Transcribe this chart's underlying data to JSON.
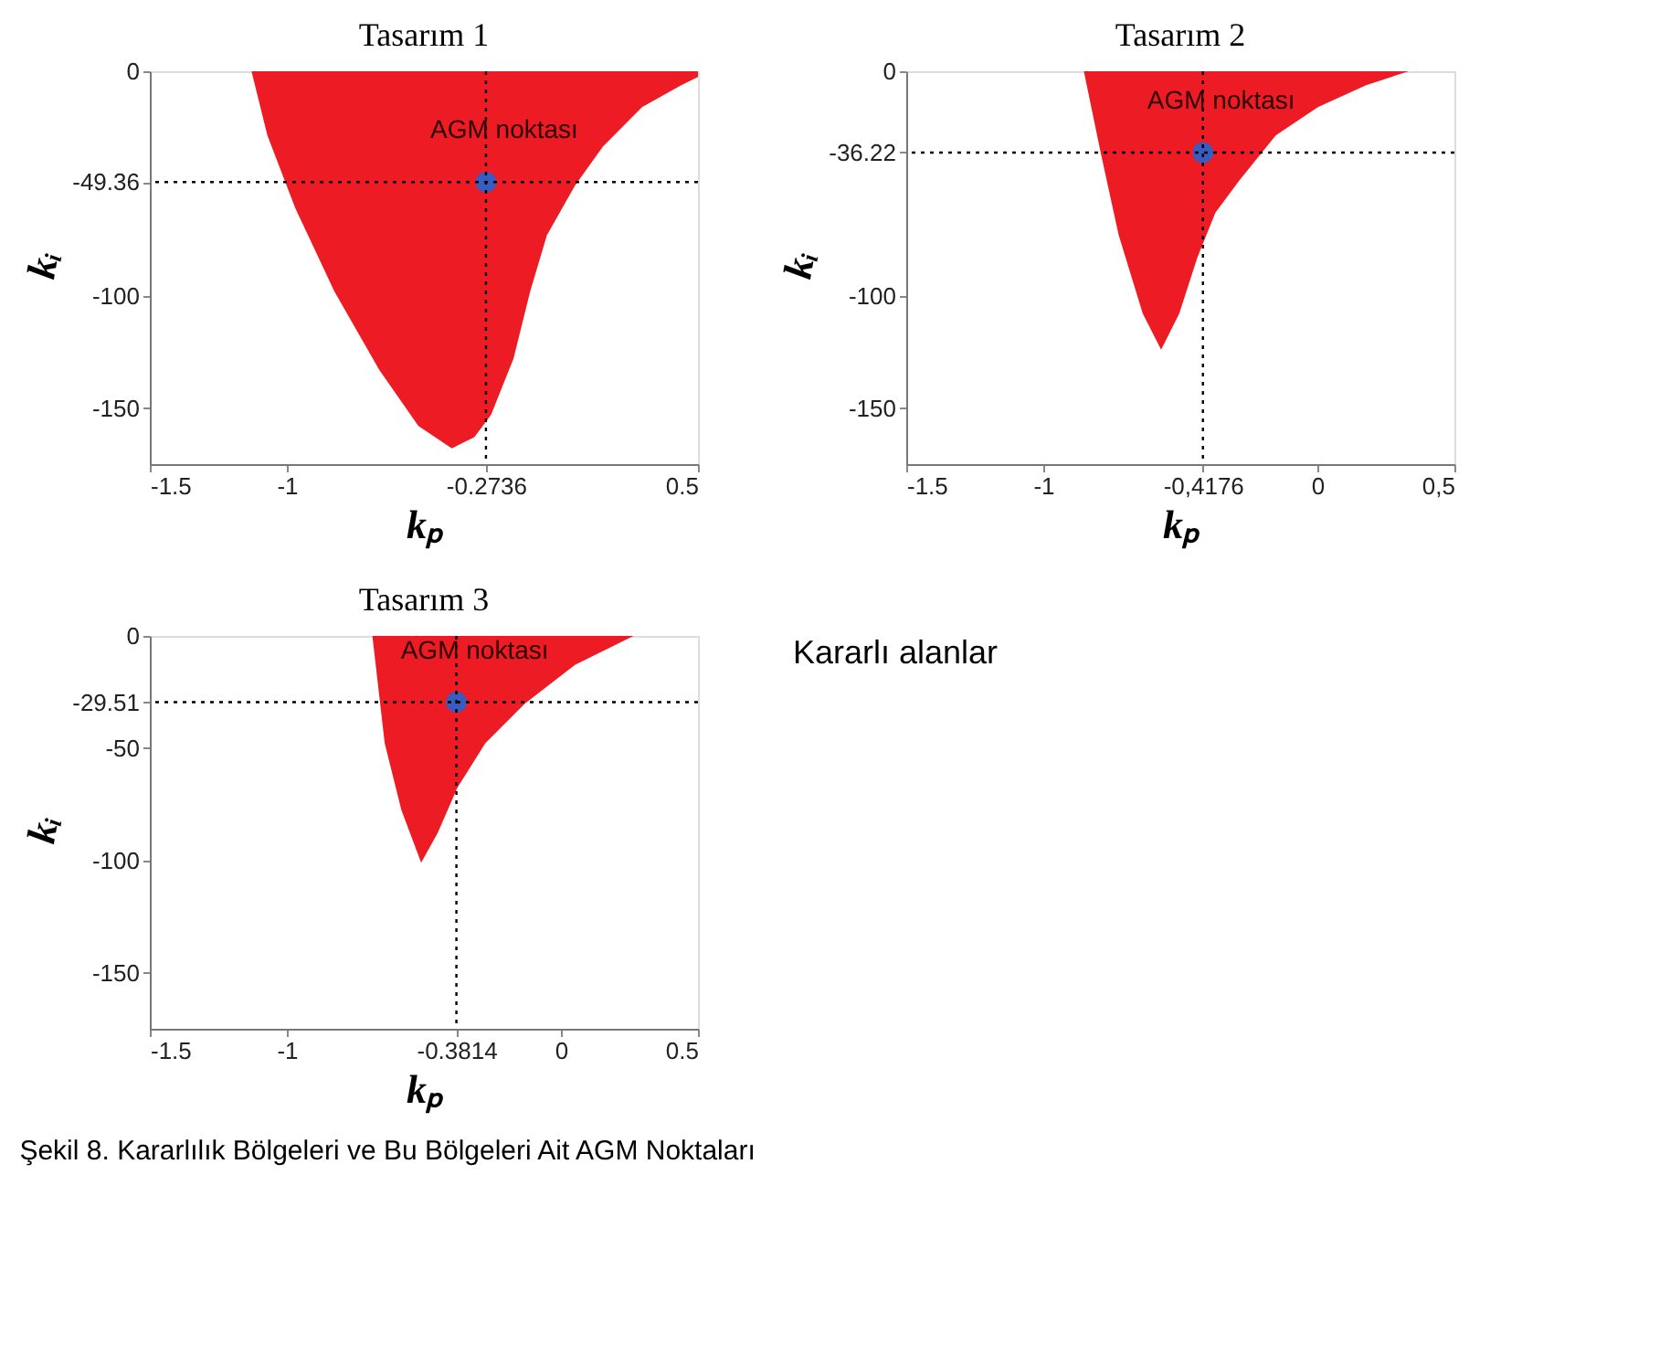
{
  "chart_data": [
    {
      "type": "area",
      "title": "Tasarım 1",
      "xlabel": "kₚ",
      "ylabel": "kᵢ",
      "xlim": [
        -1.5,
        0.5
      ],
      "ylim": [
        -175,
        0
      ],
      "xticks": [
        -1.5,
        -1,
        -0.2736,
        0.5
      ],
      "yticks": [
        0,
        -49.36,
        -100,
        -150
      ],
      "grid": false,
      "series": [
        {
          "type": "area",
          "color": "#ed1c24",
          "x": [
            -1.129,
            -1.071,
            -0.969,
            -0.827,
            -0.663,
            -0.52,
            -0.398,
            -0.316,
            -0.255,
            -0.173,
            -0.112,
            -0.051,
            0.051,
            0.153,
            0.296,
            0.439,
            0.5
          ],
          "values": [
            0,
            -28.6,
            -61,
            -98,
            -133,
            -158,
            -168,
            -163,
            -153,
            -128,
            -98,
            -73,
            -51,
            -33.6,
            -16,
            -6.2,
            -2.5
          ]
        },
        {
          "type": "scatter",
          "color": "#3a5bbf",
          "x": [
            -0.2736
          ],
          "values": [
            -49.36
          ]
        }
      ],
      "ref_lines": [
        {
          "axis": "x",
          "value": -0.2736,
          "line_style": "dotted",
          "color": "#000000"
        },
        {
          "axis": "y",
          "value": -49.36,
          "line_style": "dotted",
          "color": "#000000"
        }
      ],
      "annotations": [
        {
          "text": "AGM noktası",
          "x": -0.2736,
          "y": -49.36
        }
      ]
    },
    {
      "type": "area",
      "title": "Tasarım 2",
      "xlabel": "kₚ",
      "ylabel": "kᵢ",
      "xlim": [
        -1.5,
        0.5
      ],
      "ylim": [
        -175,
        0
      ],
      "xticks": [
        -1.5,
        -1,
        {
          "value": -0.4176,
          "label": "-0,4176"
        },
        0,
        {
          "value": 0.5,
          "label": "0,5"
        }
      ],
      "yticks": [
        0,
        -36.22,
        -100,
        -150
      ],
      "grid": false,
      "series": [
        {
          "type": "area",
          "color": "#ed1c24",
          "x": [
            -0.852,
            -0.791,
            -0.725,
            -0.637,
            -0.57,
            -0.504,
            -0.438,
            -0.372,
            -0.284,
            -0.152,
            0.002,
            0.178,
            0.333
          ],
          "values": [
            0,
            -36,
            -73,
            -108,
            -124,
            -108,
            -83,
            -63,
            -48.5,
            -28.6,
            -16,
            -6.2,
            0
          ]
        },
        {
          "type": "scatter",
          "color": "#3a5bbf",
          "x": [
            -0.4176
          ],
          "values": [
            -36.22
          ]
        }
      ],
      "ref_lines": [
        {
          "axis": "x",
          "value": -0.4176,
          "line_style": "dotted",
          "color": "#000000"
        },
        {
          "axis": "y",
          "value": -36.22,
          "line_style": "dotted",
          "color": "#000000"
        }
      ],
      "annotations": [
        {
          "text": "AGM noktası",
          "x": -0.4176,
          "y": -36.22
        }
      ]
    },
    {
      "type": "area",
      "title": "Tasarım 3",
      "xlabel": "kₚ",
      "ylabel": "kᵢ",
      "xlim": [
        -1.5,
        0.5
      ],
      "ylim": [
        -175,
        0
      ],
      "xticks": [
        -1.5,
        -1,
        -0.3814,
        0,
        0.5
      ],
      "yticks": [
        0,
        -29.51,
        -50,
        -100,
        -150
      ],
      "grid": false,
      "series": [
        {
          "type": "area",
          "color": "#ed1c24",
          "x": [
            -0.688,
            -0.643,
            -0.582,
            -0.51,
            -0.449,
            -0.378,
            -0.276,
            -0.133,
            0.051,
            0.265
          ],
          "values": [
            0,
            -47.8,
            -77.6,
            -101,
            -87.6,
            -67.7,
            -47.8,
            -30.3,
            -12.9,
            0
          ]
        },
        {
          "type": "scatter",
          "color": "#3a5bbf",
          "x": [
            -0.3814
          ],
          "values": [
            -29.51
          ]
        }
      ],
      "ref_lines": [
        {
          "axis": "x",
          "value": -0.3814,
          "line_style": "dotted",
          "color": "#000000"
        },
        {
          "axis": "y",
          "value": -29.51,
          "line_style": "dotted",
          "color": "#000000"
        }
      ],
      "annotations": [
        {
          "text": "AGM noktası",
          "x": -0.3814,
          "y": -29.51
        }
      ]
    },
    {
      "type": "other",
      "annotations": [
        "Kararlı alanlar",
        "Şekil 8. Kararlılık Bölgeleri ve Bu Bölgeleri Ait AGM Noktaları"
      ]
    }
  ]
}
